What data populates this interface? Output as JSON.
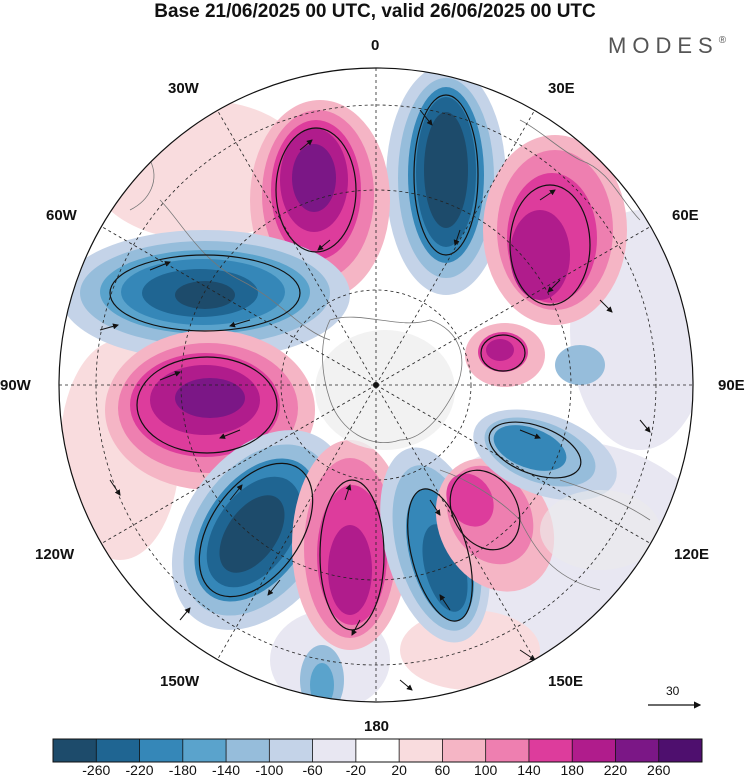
{
  "title": "Base 21/06/2025 00 UTC, valid 26/06/2025 00 UTC",
  "brand": {
    "name": "MODES",
    "mark": "®"
  },
  "map": {
    "projection": "polar stereographic",
    "longitude_labels": {
      "lon_0": "0",
      "lon_30e": "30E",
      "lon_60e": "60E",
      "lon_90e": "90E",
      "lon_120e": "120E",
      "lon_150e": "150E",
      "lon_180": "180",
      "lon_150w": "150W",
      "lon_120w": "120W",
      "lon_90w": "90W",
      "lon_60w": "60W",
      "lon_30w": "30W"
    },
    "wind_scale_label": "30"
  },
  "colorbar": {
    "ticks": [
      "-260",
      "-220",
      "-180",
      "-140",
      "-100",
      "-60",
      "-20",
      "20",
      "60",
      "100",
      "140",
      "180",
      "220",
      "260"
    ],
    "colors": [
      "#1d4b6b",
      "#1f6592",
      "#3587b8",
      "#5aa3cc",
      "#96bddb",
      "#c4d3e8",
      "#e8e7f2",
      "#ffffff",
      "#f9dcde",
      "#f5b5c5",
      "#ee7fb0",
      "#dd3c9c",
      "#b01c8c",
      "#7b1786",
      "#4e0f6e"
    ]
  }
}
